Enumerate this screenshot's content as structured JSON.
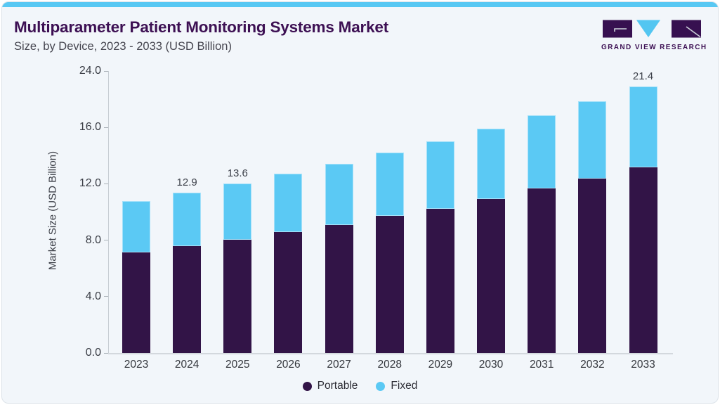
{
  "header": {
    "title": "Multiparameter Patient Monitoring Systems Market",
    "subtitle": "Size, by Device, 2023 - 2033 (USD Billion)"
  },
  "logo": {
    "text": "GRAND VIEW RESEARCH",
    "purple": "#371050",
    "cyan": "#53c6f1"
  },
  "chart_data": {
    "type": "bar",
    "stacked": true,
    "title": "Multiparameter Patient Monitoring Systems Market Size, by Device, 2023 - 2033 (USD Billion)",
    "xlabel": "",
    "ylabel": "Market Size (USD Billion)",
    "categories": [
      "2023",
      "2024",
      "2025",
      "2026",
      "2027",
      "2028",
      "2029",
      "2030",
      "2031",
      "2032",
      "2033"
    ],
    "series": [
      {
        "name": "Portable",
        "color": "#321447",
        "values": [
          8.1,
          8.6,
          9.1,
          9.7,
          10.3,
          11.0,
          11.6,
          12.4,
          13.2,
          14.0,
          14.9
        ]
      },
      {
        "name": "Fixed",
        "color": "#5bc9f4",
        "values": [
          4.1,
          4.3,
          4.5,
          4.7,
          4.9,
          5.1,
          5.4,
          5.6,
          5.9,
          6.2,
          6.5
        ]
      }
    ],
    "totals": [
      12.2,
      12.9,
      13.6,
      14.4,
      15.2,
      16.1,
      17.0,
      18.0,
      19.1,
      20.2,
      21.4
    ],
    "bar_labels": {
      "2024": "12.9",
      "2025": "13.6",
      "2033": "21.4"
    },
    "y_ticks": [
      "0.0",
      "4.0",
      "8.0",
      "12.0",
      "16.0",
      "24.0"
    ],
    "y_ticks_evenly_spaced": true,
    "ylim": [
      0,
      24
    ],
    "grid": false,
    "legend_position": "bottom"
  }
}
